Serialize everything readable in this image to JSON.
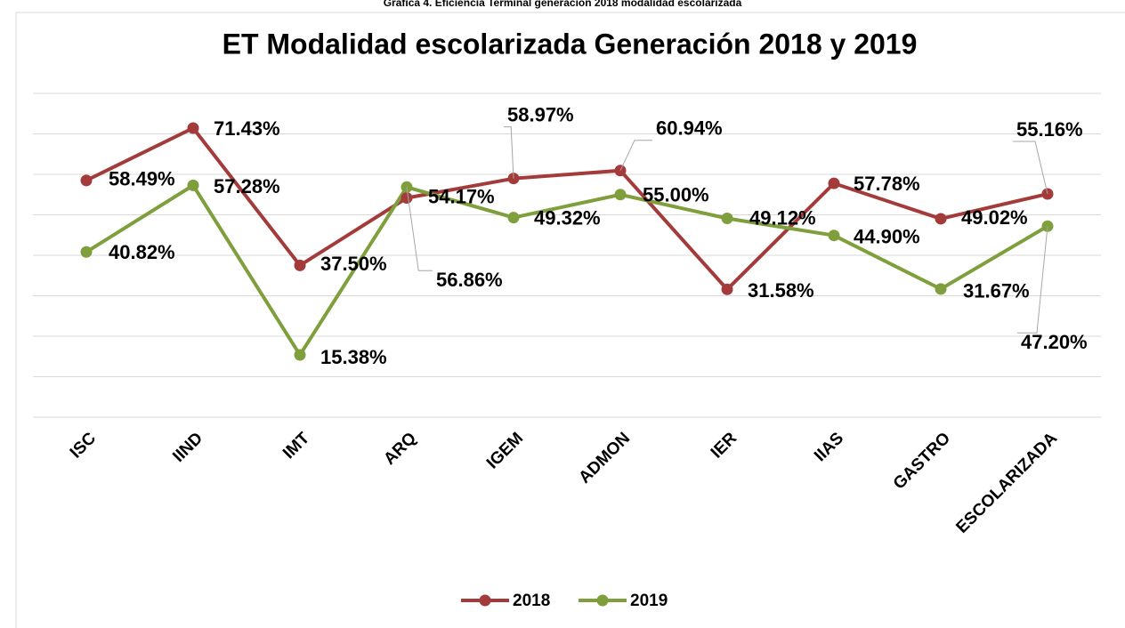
{
  "chart_data": {
    "type": "line",
    "caption": "Gráfica 4. Eficiencia Terminal generación 2018 modalidad escolarizada",
    "title": "ET Modalidad escolarizada Generación 2018 y 2019",
    "categories": [
      "ISC",
      "IIND",
      "IMT",
      "ARQ",
      "IGEM",
      "ADMON",
      "IER",
      "IIAS",
      "GASTRO",
      "ESCOLARIZADA"
    ],
    "series": [
      {
        "name": "2018",
        "color": "#a33b3b",
        "values": [
          58.49,
          71.43,
          37.5,
          54.17,
          58.97,
          60.94,
          31.58,
          57.78,
          49.02,
          55.16
        ],
        "value_labels": [
          "58.49%",
          "71.43%",
          "37.50%",
          "54.17%",
          "58.97%",
          "60.94%",
          "31.58%",
          "57.78%",
          "49.02%",
          "55.16%"
        ]
      },
      {
        "name": "2019",
        "color": "#7e9f3c",
        "values": [
          40.82,
          57.28,
          15.38,
          56.86,
          49.32,
          55.0,
          49.12,
          44.9,
          31.67,
          47.2
        ],
        "value_labels": [
          "40.82%",
          "57.28%",
          "15.38%",
          "56.86%",
          "49.32%",
          "55.00%",
          "49.12%",
          "44.90%",
          "31.67%",
          "47.20%"
        ]
      }
    ],
    "ylim": [
      0,
      80
    ],
    "yticks": [
      0,
      10,
      20,
      30,
      40,
      50,
      60,
      70,
      80
    ],
    "grid": true,
    "legend": "bottom"
  }
}
